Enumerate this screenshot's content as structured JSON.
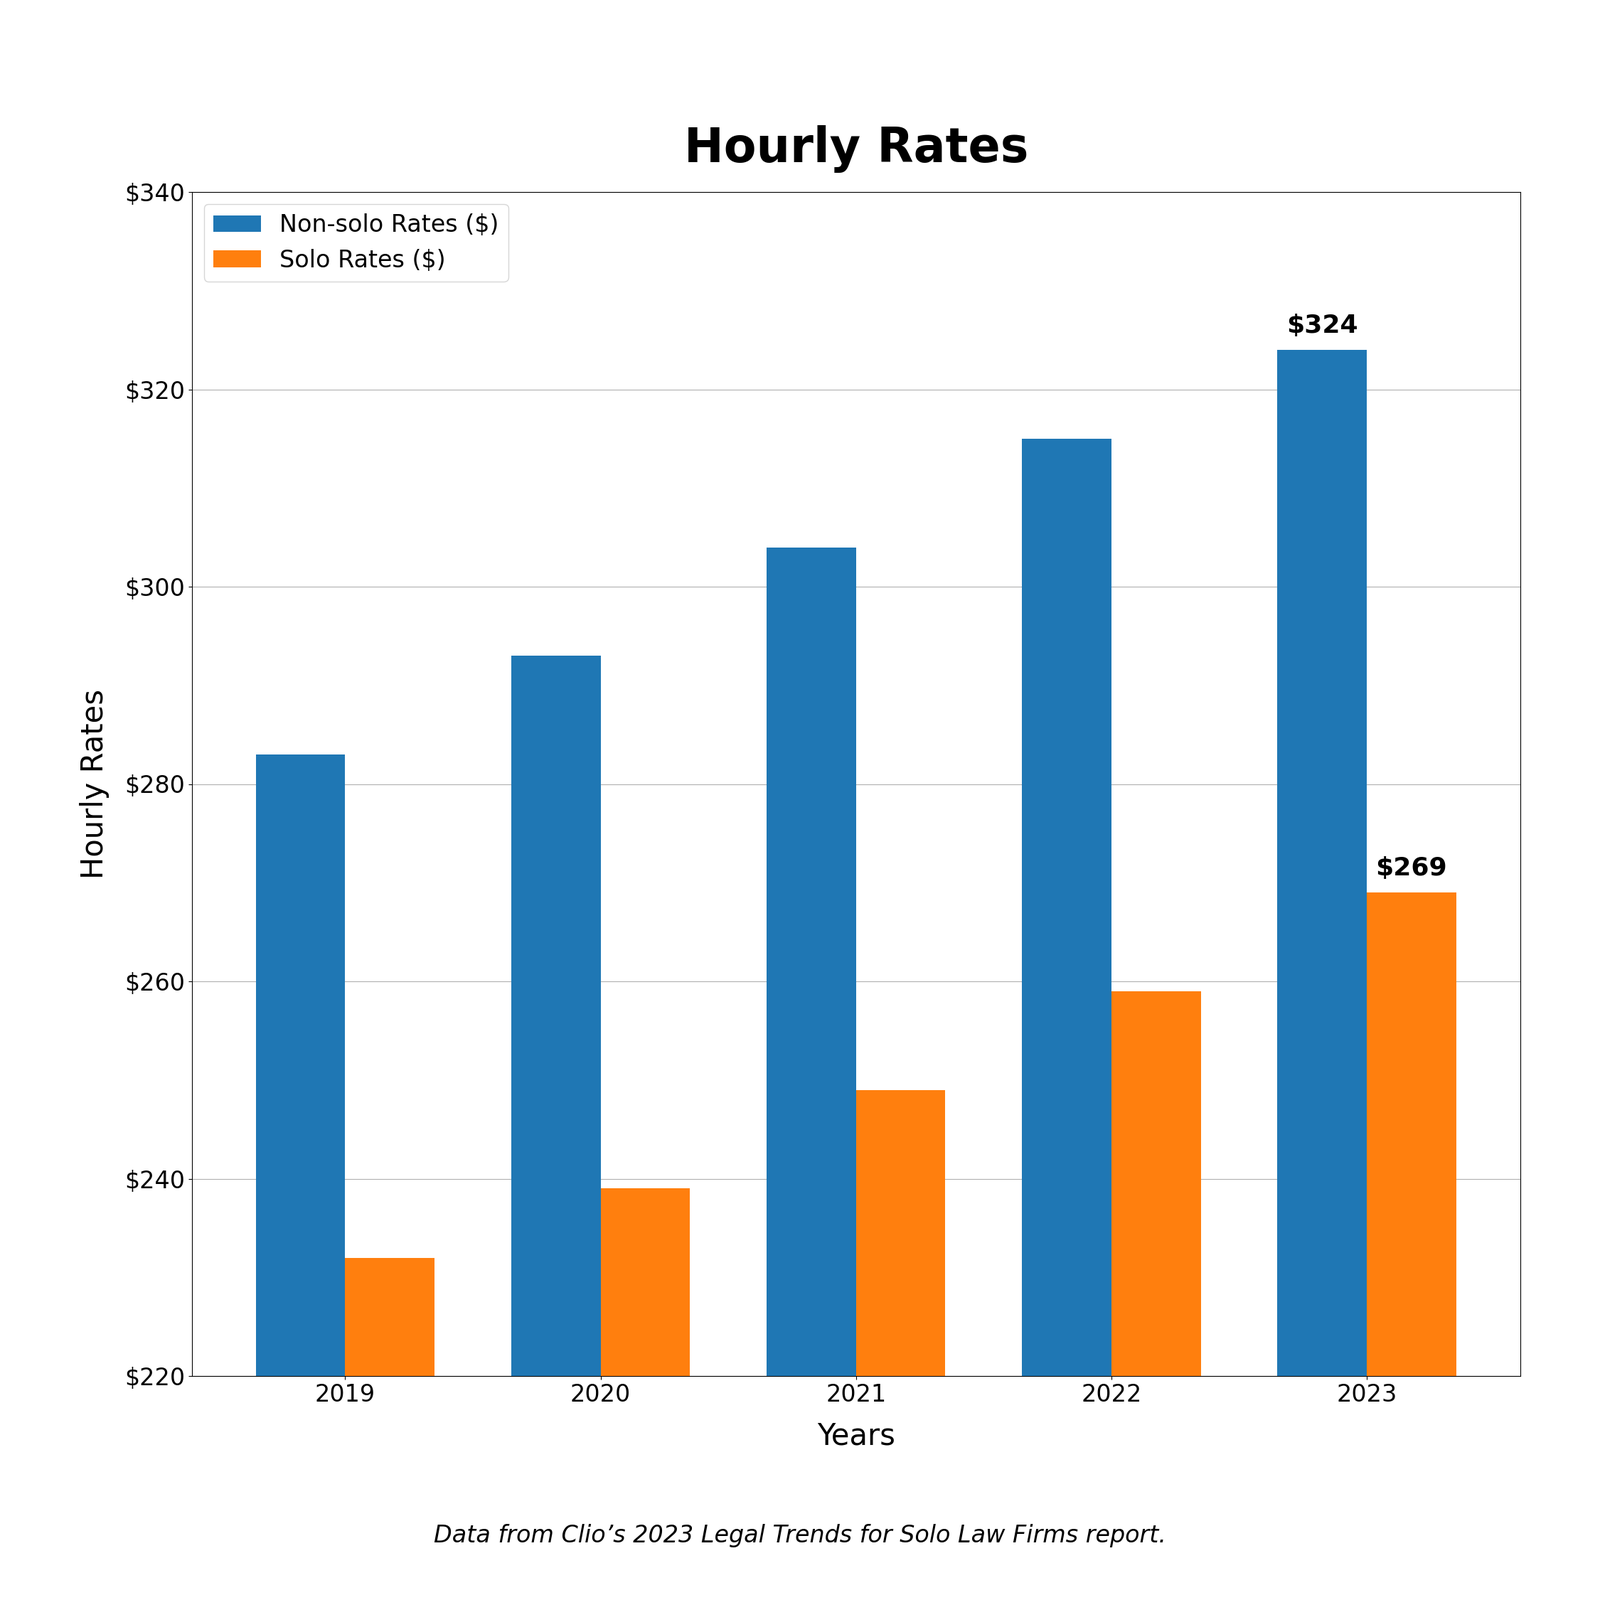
{
  "chart_data": {
    "type": "bar",
    "title": "Hourly Rates",
    "categories": [
      "2019",
      "2020",
      "2021",
      "2022",
      "2023"
    ],
    "series": [
      {
        "name": "Non-solo Rates ($)",
        "values": [
          283,
          293,
          304,
          315,
          324
        ]
      },
      {
        "name": "Solo Rates ($)",
        "values": [
          232,
          239,
          249,
          259,
          269
        ]
      }
    ],
    "x_label": "Years",
    "y_label": "Hourly Rates",
    "ylim": [
      220,
      340
    ],
    "yticks": [
      {
        "value": 220,
        "label": "$220"
      },
      {
        "value": 240,
        "label": "$240"
      },
      {
        "value": 260,
        "label": "$260"
      },
      {
        "value": 280,
        "label": "$280"
      },
      {
        "value": 300,
        "label": "$300"
      },
      {
        "value": 320,
        "label": "$320"
      },
      {
        "value": 340,
        "label": "$340"
      }
    ],
    "grid": true,
    "legend": "upper left",
    "annotations": [
      {
        "text": "$324",
        "category": "2023",
        "series": "Non-solo Rates ($)",
        "value": 324
      },
      {
        "text": "$269",
        "category": "2023",
        "series": "Solo Rates ($)",
        "value": 269
      }
    ],
    "caption": "Data from Clio’s 2023 Legal Trends for Solo Law Firms report."
  }
}
